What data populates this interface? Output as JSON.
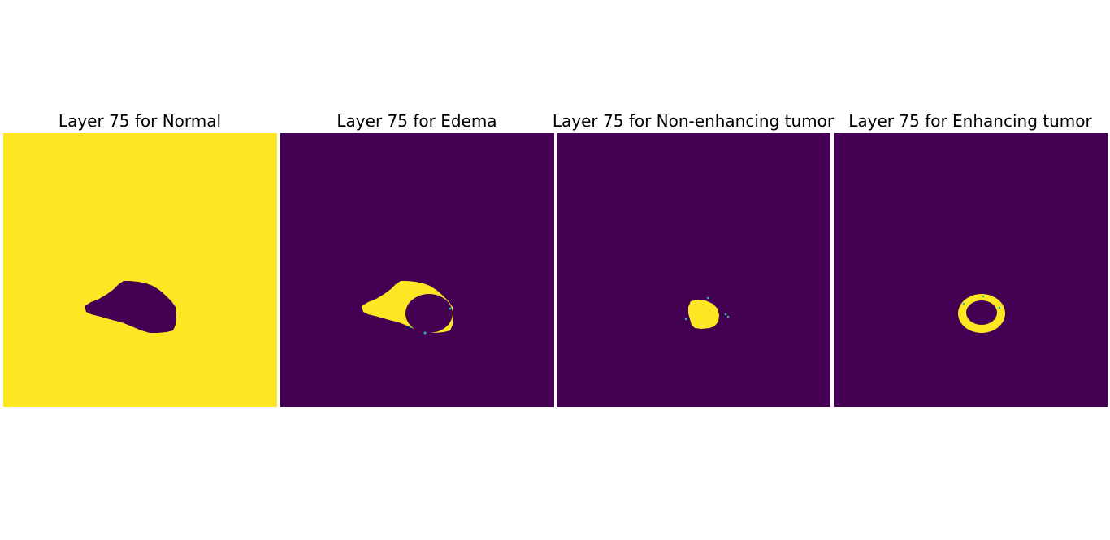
{
  "colors": {
    "background_class_absent": "#440154",
    "class_present": "#fde725",
    "boundary_speckle": "#21c5a5"
  },
  "panels": [
    {
      "title": "Layer 75 for Normal"
    },
    {
      "title": "Layer 75 for Edema"
    },
    {
      "title": "Layer 75 for Non-enhancing tumor"
    },
    {
      "title": "Layer 75 for Enhancing tumor"
    }
  ]
}
